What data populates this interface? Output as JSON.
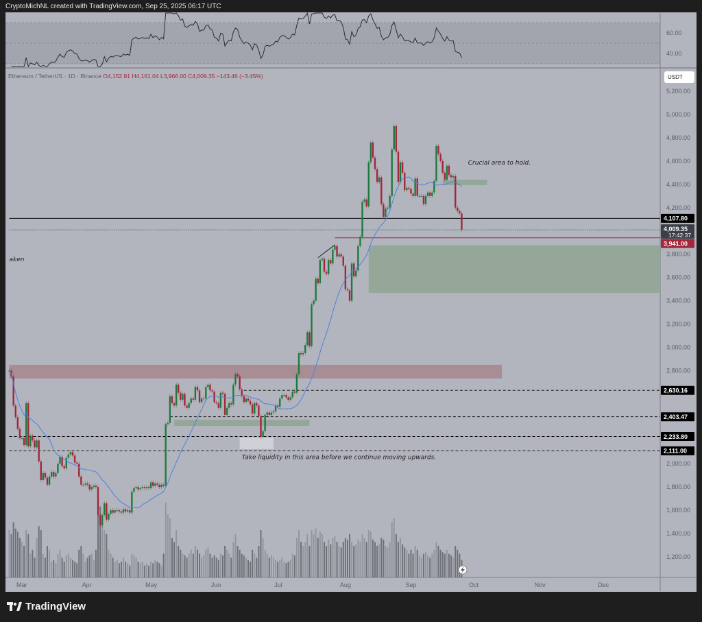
{
  "credit": "CryptoMichNL created with TradingView.com, Sep 25, 2025 06:17 UTC",
  "legend": {
    "symbol": "Ethereum / TetherUS · 1D · Binance",
    "open": "O4,152.81",
    "high": "H4,161.04",
    "low": "L3,966.00",
    "close": "C4,009.35",
    "change": "−143.46 (−3.45%)"
  },
  "currency_button": "USDT",
  "brand": "TradingView",
  "colors": {
    "background": "#b2b5be",
    "up": "#1e7a3c",
    "down": "#a3263a",
    "ma": "#4f7fe0",
    "rsi": "#2a2c32"
  },
  "chart_data": {
    "type": "candlestick",
    "start_date": "2025-02-23",
    "interval": "1D",
    "closes": [
      2800,
      2750,
      2500,
      2400,
      2300,
      2220,
      2220,
      2160,
      2520,
      2150,
      2240,
      2200,
      2140,
      2200,
      2020,
      1860,
      1920,
      1880,
      1820,
      1890,
      1930,
      1890,
      1920,
      2000,
      2060,
      1980,
      1960,
      2050,
      2080,
      2100,
      2070,
      2010,
      2000,
      1890,
      1820,
      1820,
      1830,
      1820,
      1780,
      1800,
      1810,
      1800,
      1560,
      1470,
      1560,
      1660,
      1520,
      1570,
      1600,
      1580,
      1600,
      1600,
      1590,
      1580,
      1610,
      1590,
      1600,
      1580,
      1760,
      1790,
      1800,
      1780,
      1790,
      1800,
      1790,
      1800,
      1790,
      1840,
      1810,
      1830,
      1820,
      1800,
      1820,
      1810,
      2340,
      2350,
      2580,
      2520,
      2500,
      2680,
      2610,
      2550,
      2600,
      2500,
      2480,
      2520,
      2560,
      2550,
      2660,
      2630,
      2530,
      2560,
      2560,
      2660,
      2680,
      2630,
      2620,
      2530,
      2520,
      2480,
      2610,
      2600,
      2420,
      2480,
      2520,
      2510,
      2680,
      2770,
      2750,
      2640,
      2580,
      2530,
      2560,
      2540,
      2510,
      2430,
      2520,
      2500,
      2410,
      2230,
      2280,
      2420,
      2440,
      2420,
      2440,
      2450,
      2500,
      2490,
      2560,
      2590,
      2590,
      2570,
      2550,
      2570,
      2620,
      2610,
      2770,
      2950,
      2940,
      2950,
      3020,
      3130,
      3010,
      3370,
      3400,
      3590,
      3550,
      3750,
      3760,
      3650,
      3630,
      3750,
      3720,
      3840,
      3870,
      3780,
      3800,
      3780,
      3700,
      3500,
      3490,
      3400,
      3720,
      3610,
      3660,
      3870,
      3950,
      4250,
      4270,
      4210,
      4590,
      4760,
      4630,
      4530,
      4420,
      4460,
      4230,
      4120,
      4190,
      4200,
      4300,
      4700,
      4900,
      4680,
      4420,
      4590,
      4500,
      4350,
      4370,
      4360,
      4320,
      4300,
      4450,
      4300,
      4300,
      4300,
      4230,
      4300,
      4330,
      4300,
      4330,
      4430,
      4730,
      4660,
      4600,
      4500,
      4440,
      4560,
      4480,
      4460,
      4470,
      4200,
      4170,
      4150,
      4009.35
    ],
    "volume_relative": [
      60,
      55,
      70,
      62,
      58,
      50,
      45,
      40,
      60,
      55,
      30,
      35,
      25,
      50,
      65,
      60,
      30,
      25,
      40,
      35,
      20,
      22,
      18,
      30,
      35,
      25,
      20,
      28,
      30,
      25,
      22,
      20,
      18,
      35,
      40,
      30,
      20,
      25,
      28,
      30,
      22,
      35,
      80,
      90,
      70,
      60,
      55,
      35,
      30,
      25,
      20,
      22,
      18,
      20,
      25,
      20,
      18,
      15,
      30,
      28,
      25,
      20,
      18,
      20,
      15,
      18,
      15,
      20,
      18,
      22,
      20,
      18,
      15,
      30,
      95,
      80,
      75,
      50,
      45,
      60,
      40,
      35,
      30,
      28,
      25,
      30,
      35,
      30,
      40,
      35,
      30,
      25,
      28,
      35,
      38,
      30,
      25,
      28,
      25,
      22,
      30,
      28,
      40,
      35,
      30,
      25,
      45,
      55,
      40,
      35,
      30,
      28,
      25,
      22,
      20,
      35,
      30,
      25,
      40,
      60,
      50,
      35,
      30,
      25,
      28,
      25,
      22,
      20,
      22,
      25,
      20,
      18,
      20,
      22,
      30,
      28,
      50,
      60,
      45,
      40,
      45,
      55,
      40,
      60,
      55,
      62,
      50,
      58,
      55,
      45,
      40,
      48,
      42,
      50,
      52,
      45,
      40,
      38,
      45,
      50,
      48,
      55,
      45,
      40,
      42,
      48,
      45,
      55,
      50,
      45,
      60,
      58,
      48,
      45,
      40,
      42,
      50,
      48,
      40,
      38,
      45,
      70,
      75,
      55,
      45,
      50,
      42,
      38,
      35,
      30,
      35,
      30,
      40,
      35,
      28,
      25,
      30,
      32,
      28,
      25,
      30,
      35,
      45,
      40,
      35,
      32,
      30,
      35,
      30,
      28,
      25,
      40,
      35,
      30,
      22
    ],
    "ma_period": 20,
    "rsi_period": 14,
    "price_axis": {
      "ticks": [
        1200,
        1400,
        1600,
        1800,
        2000,
        2200,
        2400,
        2600,
        2800,
        3000,
        3200,
        3400,
        3600,
        3800,
        4000,
        4200,
        4400,
        4600,
        4800,
        5000,
        5200
      ],
      "tick_labels": [
        "1,200.00",
        "1,400.00",
        "1,600.00",
        "1,800.00",
        "2,000.00",
        "",
        "",
        "",
        "2,800.00",
        "3,000.00",
        "3,200.00",
        "3,400.00",
        "3,600.00",
        "3,800.00",
        "",
        "4,200.00",
        "4,400.00",
        "4,600.00",
        "4,800.00",
        "5,000.00",
        "5,200.00"
      ],
      "range": [
        1040,
        5300
      ]
    },
    "rsi_axis": {
      "ticks": [
        60,
        40
      ],
      "tick_labels": [
        "60.00",
        "40.00"
      ],
      "bands": [
        30,
        50,
        70
      ],
      "range": [
        25,
        80
      ]
    },
    "time_axis": {
      "ticks": [
        "2025-03-01",
        "2025-04-01",
        "2025-05-01",
        "2025-06-01",
        "2025-07-01",
        "2025-08-01",
        "2025-09-01",
        "2025-10-01",
        "2025-11-01",
        "2025-12-01"
      ],
      "tick_labels": [
        "Mar",
        "Apr",
        "May",
        "Jun",
        "Jul",
        "Aug",
        "Sep",
        "Oct",
        "Nov",
        "Dec"
      ]
    },
    "price_labels": [
      {
        "value": 4107.8,
        "label": "4,107.80",
        "style": "solid",
        "color": "#000000",
        "from": "2025-02-23"
      },
      {
        "value": 4009.35,
        "label": "4,009.35",
        "sub": "17:42:37",
        "style": "dotted",
        "color": "#3c3f47",
        "from": "2025-02-23"
      },
      {
        "value": 3941.0,
        "label": "3,941.00",
        "style": "solid",
        "color": "#a3263a",
        "from": "2025-07-27"
      },
      {
        "value": 2630.16,
        "label": "2,630.16",
        "style": "dashed",
        "color": "#000000",
        "from": "2025-06-14"
      },
      {
        "value": 2403.47,
        "label": "2,403.47",
        "style": "dashed",
        "color": "#000000",
        "from": "2025-05-10"
      },
      {
        "value": 2233.8,
        "label": "2,233.80",
        "style": "dashed",
        "color": "#000000",
        "from": "2025-02-23"
      },
      {
        "value": 2111.0,
        "label": "2,111.00",
        "style": "dashed",
        "color": "#000000",
        "from": "2025-02-23"
      }
    ],
    "zones": [
      {
        "from": "2025-02-23",
        "to": "2025-10-14",
        "low": 2732,
        "high": 2850,
        "color": "#a6878d"
      },
      {
        "from": "2025-08-12",
        "to": "2026-01-01",
        "low": 3468,
        "high": 3875,
        "color": "#8ea593"
      },
      {
        "from": "2025-09-16",
        "to": "2025-10-07",
        "low": 4393,
        "high": 4440,
        "color": "#8ea593"
      },
      {
        "from": "2025-05-12",
        "to": "2025-07-15",
        "low": 2325,
        "high": 2378,
        "color": "#8ea593"
      },
      {
        "from": "2025-06-12",
        "to": "2025-06-28",
        "low": 2125,
        "high": 2225,
        "color": "#d4d6db"
      }
    ],
    "trendline": {
      "from": [
        "2025-07-19",
        3770
      ],
      "to": [
        "2025-07-27",
        3880
      ]
    },
    "annotations": [
      {
        "text": "Crucial area to hold.",
        "date": "2025-09-28",
        "price": 4570
      },
      {
        "text": "Take liquidity in this area before we continue moving upwards.",
        "date": "2025-06-13",
        "price": 2040
      },
      {
        "text": "aken",
        "date": "2025-02-23",
        "price": 3740
      }
    ]
  }
}
